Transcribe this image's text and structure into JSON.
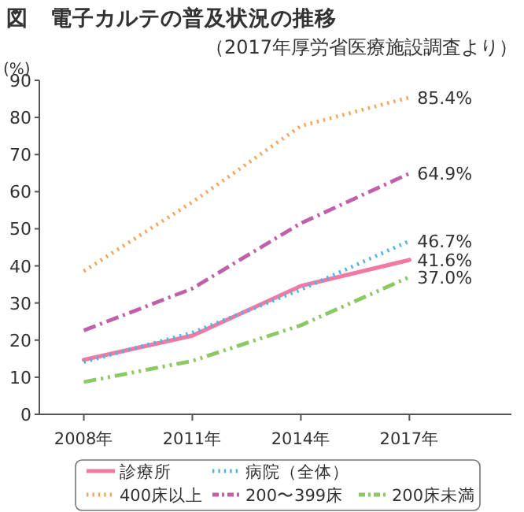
{
  "chart_data": {
    "type": "line",
    "title": "図　電子カルテの普及状況の推移",
    "subtitle": "（2017年厚労省医療施設調査より）",
    "ylabel": "(%)",
    "categories": [
      "2008年",
      "2011年",
      "2014年",
      "2017年"
    ],
    "ylim": [
      0,
      90
    ],
    "yticks": [
      0,
      10,
      20,
      30,
      40,
      50,
      60,
      70,
      80,
      90
    ],
    "grid": false,
    "legend": "bottom",
    "marker": "none",
    "series": [
      {
        "name": "診療所",
        "color": "#f07aa0",
        "line_style": "solid",
        "values": [
          14.7,
          21.2,
          34.6,
          41.6
        ],
        "value_labels": [
          null,
          null,
          null,
          "41.6%"
        ]
      },
      {
        "name": "病院（全体）",
        "color": "#4fb3e8",
        "line_style": "dotted",
        "values": [
          14.1,
          22.0,
          33.6,
          46.7
        ],
        "value_labels": [
          null,
          null,
          null,
          "46.7%"
        ]
      },
      {
        "name": "400床以上",
        "color": "#f7a35c",
        "line_style": "dotted",
        "values": [
          38.6,
          57.2,
          77.7,
          85.4
        ],
        "value_labels": [
          null,
          null,
          null,
          "85.4%"
        ]
      },
      {
        "name": "200〜399床",
        "color": "#c060a8",
        "line_style": "dashdot",
        "values": [
          22.6,
          33.9,
          51.5,
          64.9
        ],
        "value_labels": [
          null,
          null,
          null,
          "64.9%"
        ]
      },
      {
        "name": "200床未満",
        "color": "#8cc864",
        "line_style": "dashdotdot",
        "values": [
          8.7,
          14.4,
          24.0,
          37.0
        ],
        "value_labels": [
          null,
          null,
          null,
          "37.0%"
        ]
      }
    ]
  }
}
